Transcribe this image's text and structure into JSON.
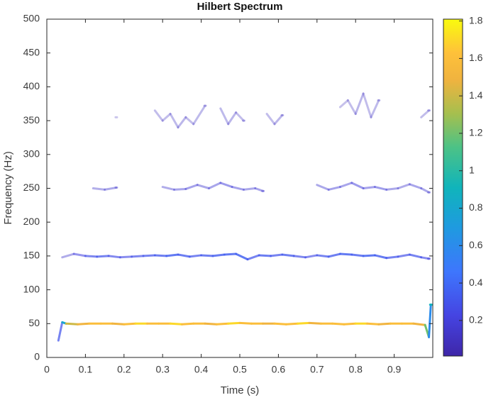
{
  "chart_data": {
    "type": "line",
    "title": "Hilbert Spectrum",
    "x_label": "Time (s)",
    "y_label": "Frequency (Hz)",
    "xlim": [
      0,
      1
    ],
    "xticks": [
      0,
      0.1,
      0.2,
      0.3,
      0.4,
      0.5,
      0.6,
      0.7,
      0.8,
      0.9
    ],
    "ylim": [
      0,
      500
    ],
    "yticks": [
      0,
      50,
      100,
      150,
      200,
      250,
      300,
      350,
      400,
      450,
      500
    ],
    "colormap": "parula",
    "colorbar": {
      "lim": [
        0.01,
        1.81
      ],
      "ticks": [
        0.2,
        0.4,
        0.6,
        0.8,
        1,
        1.2,
        1.4,
        1.6,
        1.8
      ]
    },
    "series": [
      {
        "x": [
          0.03,
          0.04,
          0.05,
          0.08,
          0.11,
          0.14,
          0.17,
          0.2,
          0.23,
          0.26,
          0.29,
          0.32,
          0.35,
          0.38,
          0.41,
          0.44,
          0.47,
          0.5,
          0.53,
          0.56,
          0.59,
          0.62,
          0.65,
          0.68,
          0.71,
          0.74,
          0.77,
          0.8,
          0.83,
          0.86,
          0.89,
          0.92,
          0.95,
          0.98,
          0.99,
          0.995
        ],
        "values": [
          25,
          52,
          50,
          49,
          50,
          50,
          50,
          49,
          50,
          50,
          50,
          50,
          49,
          50,
          50,
          49,
          50,
          51,
          50,
          50,
          50,
          49,
          50,
          51,
          50,
          50,
          49,
          50,
          50,
          49,
          50,
          50,
          50,
          48,
          30,
          78
        ],
        "amplitude": [
          0.3,
          0.8,
          1.4,
          1.5,
          1.6,
          1.6,
          1.5,
          1.6,
          1.7,
          1.6,
          1.6,
          1.7,
          1.6,
          1.6,
          1.5,
          1.6,
          1.7,
          1.6,
          1.6,
          1.5,
          1.6,
          1.6,
          1.7,
          1.5,
          1.6,
          1.6,
          1.6,
          1.7,
          1.6,
          1.5,
          1.6,
          1.6,
          1.5,
          1.2,
          0.6,
          0.9
        ]
      },
      {
        "x": [
          0.04,
          0.07,
          0.1,
          0.13,
          0.16,
          0.19,
          0.22,
          0.25,
          0.28,
          0.31,
          0.34,
          0.37,
          0.4,
          0.43,
          0.46,
          0.49,
          0.52,
          0.55,
          0.58,
          0.61,
          0.64,
          0.67,
          0.7,
          0.73,
          0.76,
          0.79,
          0.82,
          0.85,
          0.88,
          0.91,
          0.94,
          0.97,
          0.99
        ],
        "values": [
          148,
          153,
          150,
          149,
          150,
          148,
          149,
          150,
          151,
          150,
          152,
          149,
          151,
          150,
          152,
          153,
          145,
          151,
          150,
          152,
          150,
          148,
          151,
          149,
          153,
          152,
          150,
          151,
          147,
          149,
          152,
          148,
          146
        ],
        "amplitude": [
          0.15,
          0.22,
          0.28,
          0.3,
          0.27,
          0.25,
          0.28,
          0.3,
          0.32,
          0.35,
          0.33,
          0.3,
          0.32,
          0.34,
          0.35,
          0.36,
          0.3,
          0.33,
          0.3,
          0.32,
          0.28,
          0.26,
          0.3,
          0.32,
          0.35,
          0.33,
          0.36,
          0.34,
          0.3,
          0.28,
          0.3,
          0.26,
          0.2
        ]
      },
      {
        "x": [
          0.12,
          0.15,
          0.18,
          0.25,
          0.3,
          0.33,
          0.36,
          0.39,
          0.42,
          0.45,
          0.48,
          0.51,
          0.54,
          0.56,
          0.63,
          0.7,
          0.73,
          0.76,
          0.79,
          0.82,
          0.85,
          0.88,
          0.91,
          0.94,
          0.97,
          0.99
        ],
        "values": [
          250,
          248,
          251,
          null,
          252,
          248,
          249,
          255,
          250,
          258,
          252,
          248,
          250,
          246,
          null,
          255,
          248,
          252,
          258,
          250,
          252,
          248,
          250,
          256,
          250,
          244
        ],
        "amplitude": [
          0.14,
          0.16,
          0.14,
          null,
          0.15,
          0.17,
          0.18,
          0.16,
          0.17,
          0.2,
          0.18,
          0.16,
          0.17,
          0.15,
          null,
          0.16,
          0.18,
          0.17,
          0.2,
          0.18,
          0.19,
          0.16,
          0.15,
          0.17,
          0.16,
          0.14
        ]
      },
      {
        "x": [
          0.18,
          0.2,
          0.28,
          0.3,
          0.32,
          0.34,
          0.36,
          0.38,
          0.41,
          0.43,
          0.45,
          0.47,
          0.49,
          0.51,
          0.53,
          0.57,
          0.59,
          0.61,
          0.63,
          0.7,
          0.76,
          0.78,
          0.8,
          0.82,
          0.84,
          0.86,
          0.93,
          0.97,
          0.99
        ],
        "values": [
          355,
          null,
          365,
          350,
          360,
          340,
          355,
          345,
          372,
          null,
          368,
          345,
          362,
          350,
          null,
          360,
          345,
          358,
          null,
          null,
          370,
          380,
          360,
          390,
          355,
          380,
          null,
          355,
          365
        ],
        "amplitude": [
          0.08,
          null,
          0.1,
          0.1,
          0.11,
          0.12,
          0.1,
          0.11,
          0.1,
          null,
          0.11,
          0.12,
          0.1,
          0.11,
          null,
          0.1,
          0.12,
          0.1,
          null,
          null,
          0.09,
          0.1,
          0.12,
          0.1,
          0.11,
          0.09,
          null,
          0.1,
          0.11
        ]
      }
    ]
  }
}
